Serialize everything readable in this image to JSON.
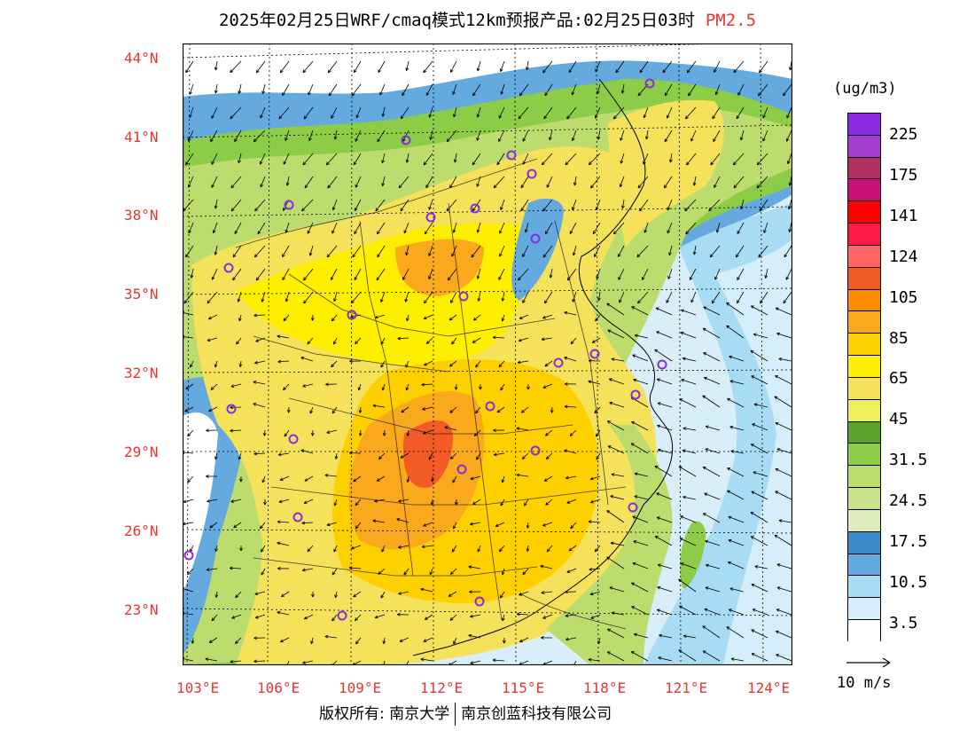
{
  "title": {
    "main": "2025年02月25日WRF/cmaq模式12km预报产品:02月25日03时",
    "variable": "PM2.5"
  },
  "axes": {
    "lat_labels": [
      "44°N",
      "41°N",
      "38°N",
      "35°N",
      "32°N",
      "29°N",
      "26°N",
      "23°N"
    ],
    "lon_labels": [
      "103°E",
      "106°E",
      "109°E",
      "112°E",
      "115°E",
      "118°E",
      "121°E",
      "124°E"
    ]
  },
  "legend": {
    "unit": "(ug/m3)",
    "colors": [
      "#8a2be2",
      "#a53cd0",
      "#b03060",
      "#c8107a",
      "#ff0000",
      "#ff1a45",
      "#ff6464",
      "#f25a26",
      "#ff8c00",
      "#faa81c",
      "#ffd000",
      "#ffee00",
      "#f5e25a",
      "#eef05a",
      "#5aa32a",
      "#8ccc46",
      "#bcdc6e",
      "#c8e28c",
      "#e0ecc0",
      "#3f8ccc",
      "#64aadf",
      "#a8dcf4",
      "#d4eefa",
      "#ffffff"
    ],
    "levels": [
      "225",
      "175",
      "141",
      "124",
      "105",
      "85",
      "65",
      "45",
      "31.5",
      "24.5",
      "17.5",
      "10.5",
      "3.5"
    ],
    "wind_reference": "10 m/s"
  },
  "copyright": {
    "label": "版权所有:",
    "org1": "南京大学",
    "org2": "南京创蓝科技有限公司"
  },
  "colors": {
    "axis_label": "#e8352e",
    "marker": "#8a2be2"
  }
}
